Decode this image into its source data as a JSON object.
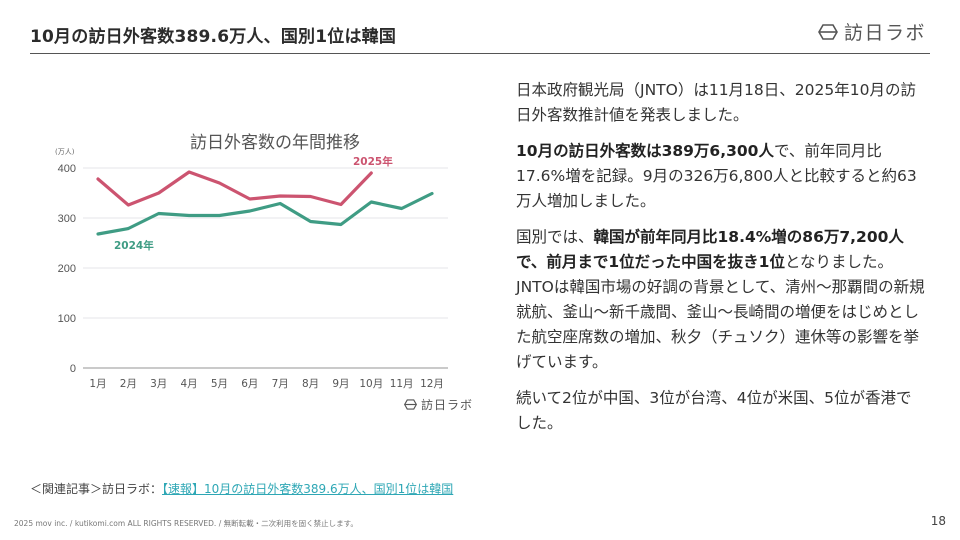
{
  "header": {
    "title": "10月の訪日外客数389.6万人、国別1位は韓国",
    "brand": "訪日ラボ"
  },
  "chart": {
    "title": "訪日外客数の年間推移",
    "unit": "(万人)",
    "watermark": "訪日ラボ",
    "label_2025": "2025年",
    "label_2024": "2024年"
  },
  "chart_data": {
    "type": "line",
    "title": "訪日外客数の年間推移",
    "xlabel": "",
    "ylabel": "(万人)",
    "categories": [
      "1月",
      "2月",
      "3月",
      "4月",
      "5月",
      "6月",
      "7月",
      "8月",
      "9月",
      "10月",
      "11月",
      "12月"
    ],
    "y_ticks": [
      0,
      100,
      200,
      300,
      400
    ],
    "ylim": [
      0,
      400
    ],
    "grid": true,
    "legend": "inline labels",
    "series": [
      {
        "name": "2025年",
        "color": "#cc5470",
        "values": [
          378,
          326,
          350,
          392,
          370,
          338,
          344,
          343,
          327,
          390,
          null,
          null
        ]
      },
      {
        "name": "2024年",
        "color": "#3f9c84",
        "values": [
          268,
          279,
          309,
          305,
          305,
          314,
          329,
          293,
          287,
          332,
          319,
          349
        ]
      }
    ]
  },
  "article": {
    "p1": "日本政府観光局（JNTO）は11月18日、2025年10月の訪日外客数推計値を発表しました。",
    "p2_bold": "10月の訪日外客数は389万6,300人",
    "p2_rest": "で、前年同月比17.6%増を記録。9月の326万6,800人と比較すると約63万人増加しました。",
    "p3_pre": "国別では、",
    "p3_bold": "韓国が前年同月比18.4%増の86万7,200人で、前月まで1位だった中国を抜き1位",
    "p3_rest": "となりました。JNTOは韓国市場の好調の背景として、清州〜那覇間の新規就航、釜山〜新千歳間、釜山〜長崎間の増便をはじめとした航空座席数の増加、秋夕（チュソク）連休等の影響を挙げています。",
    "p4": "続いて2位が中国、3位が台湾、4位が米国、5位が香港でした。"
  },
  "related": {
    "prefix": "＜関連記事＞訪日ラボ：",
    "link_text": "【速報】10月の訪日外客数389.6万人、国別1位は韓国"
  },
  "footer": {
    "copyright": "2025 mov inc. / kutikomi.com ALL RIGHTS RESERVED. / 無断転載・二次利用を固く禁止します。",
    "page_number": "18"
  },
  "colors": {
    "series_2025": "#cc5470",
    "series_2024": "#3f9c84",
    "link": "#2ea7b5",
    "rule": "#555555"
  }
}
